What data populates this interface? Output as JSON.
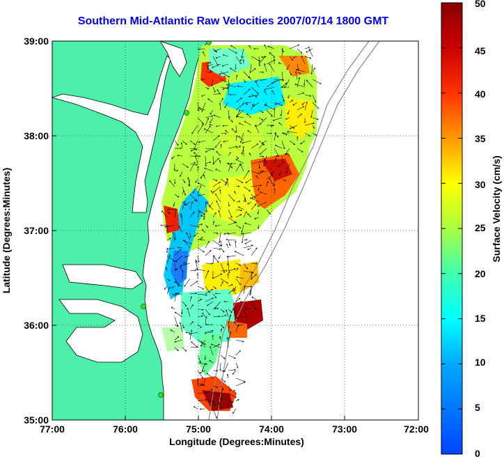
{
  "title": "Southern Mid-Atlantic Raw Velocities 2007/07/14 1800 GMT",
  "x_axis": {
    "label": "Longitude (Degrees:Minutes)",
    "ticks": [
      "77:00",
      "76:00",
      "75:00",
      "74:00",
      "73:00",
      "72:00"
    ]
  },
  "y_axis": {
    "label": "Latitude (Degrees:Minutes)",
    "ticks": [
      "39:00",
      "38:00",
      "37:00",
      "36:00",
      "35:00"
    ]
  },
  "colorbar": {
    "label": "Surface Velocity (cm/s)",
    "ticks": [
      "50",
      "45",
      "40",
      "35",
      "30",
      "25",
      "20",
      "15",
      "10",
      "5",
      "0"
    ],
    "range": [
      0,
      50
    ]
  },
  "colors": {
    "land": "#4cf0a8",
    "water": "#ffffff",
    "title": "#0000ee",
    "station": "#33dd33"
  },
  "grid": "dotted"
}
